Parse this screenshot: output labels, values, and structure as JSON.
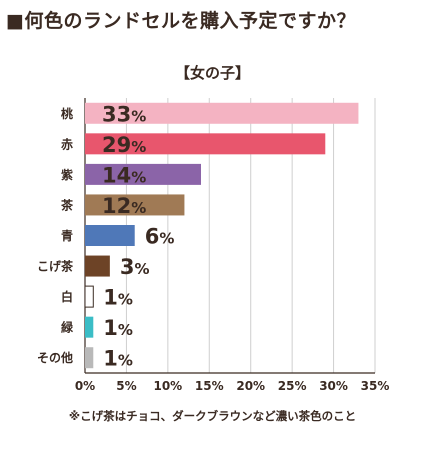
{
  "chart_data": {
    "type": "bar",
    "orientation": "horizontal",
    "title": "■何色のランドセルを購入予定ですか？",
    "subtitle": "【女の子】",
    "categories": [
      "桃",
      "赤",
      "紫",
      "茶",
      "青",
      "こげ茶",
      "白",
      "緑",
      "その他"
    ],
    "values": [
      33,
      29,
      14,
      12,
      6,
      3,
      1,
      1,
      1
    ],
    "value_suffix": "%",
    "colors": [
      "#f4b3c2",
      "#e8566d",
      "#8b64a8",
      "#a07a55",
      "#4f78b8",
      "#6d4326",
      "#ffffff",
      "#3bbdc6",
      "#b9b9b9"
    ],
    "xlim": [
      0,
      35
    ],
    "xticks": [
      "0%",
      "5%",
      "10%",
      "15%",
      "20%",
      "25%",
      "30%",
      "35%"
    ],
    "grid": true,
    "footnote": "※こげ茶はチョコ、ダークブラウンなど濃い茶色のこと"
  }
}
